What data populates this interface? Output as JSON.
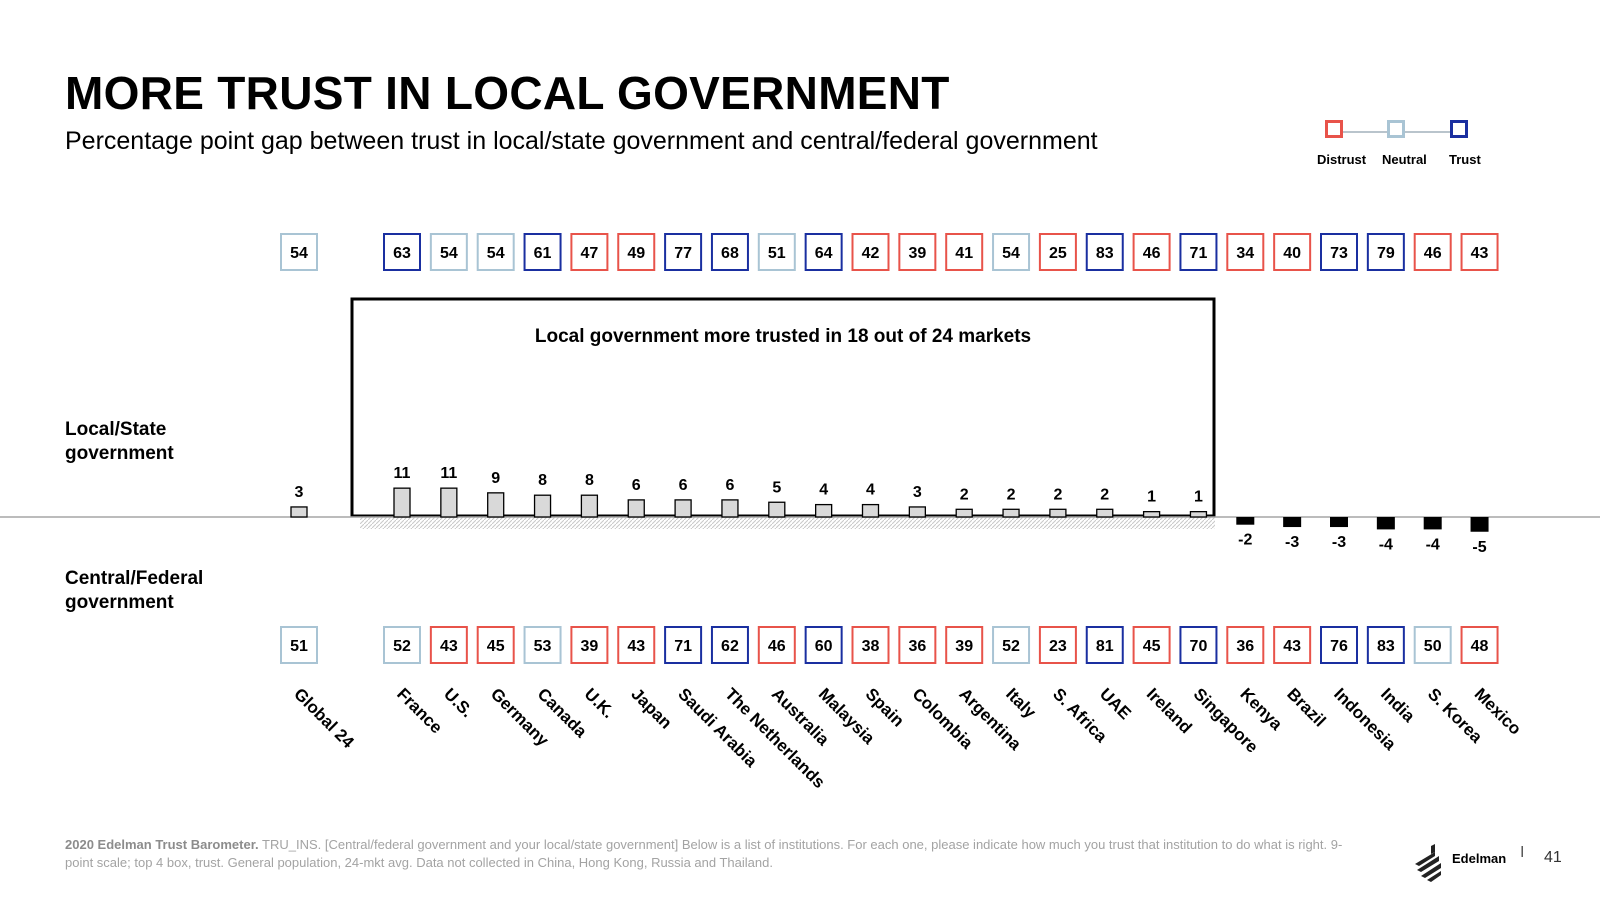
{
  "header": {
    "title": "MORE TRUST IN LOCAL GOVERNMENT",
    "subtitle": "Percentage point gap between trust in local/state government and central/federal government"
  },
  "labels": {
    "local_line1": "Local/State",
    "local_line2": "government",
    "central_line1": "Central/Federal",
    "central_line2": "government"
  },
  "legend": {
    "items": [
      {
        "label": "Distrust",
        "color": "#e8534a"
      },
      {
        "label": "Neutral",
        "color": "#a9c4d4"
      },
      {
        "label": "Trust",
        "color": "#1a2fa0"
      }
    ]
  },
  "annotation": {
    "text": "Local government more trusted in 18 out of 24 markets"
  },
  "colors": {
    "distrust": "#e8534a",
    "neutral": "#a9c4d4",
    "trust": "#1a2fa0",
    "positive_bar": "#d9d9d9",
    "negative_bar": "#000000"
  },
  "chart_data": {
    "type": "bar",
    "categories": [
      "Global 24",
      "France",
      "U.S.",
      "Germany",
      "Canada",
      "U.K.",
      "Japan",
      "Saudi Arabia",
      "The Netherlands",
      "Australia",
      "Malaysia",
      "Spain",
      "Colombia",
      "Argentina",
      "Italy",
      "S. Africa",
      "UAE",
      "Ireland",
      "Singapore",
      "Kenya",
      "Brazil",
      "Indonesia",
      "India",
      "S. Korea",
      "Mexico"
    ],
    "values": [
      3,
      11,
      11,
      9,
      8,
      8,
      6,
      6,
      6,
      5,
      4,
      4,
      3,
      2,
      2,
      2,
      2,
      1,
      1,
      -2,
      -3,
      -3,
      -4,
      -4,
      -5
    ],
    "local_trust": [
      54,
      63,
      54,
      54,
      61,
      47,
      49,
      77,
      68,
      51,
      64,
      42,
      39,
      41,
      54,
      25,
      83,
      46,
      71,
      34,
      40,
      73,
      79,
      46,
      43
    ],
    "central_trust": [
      51,
      52,
      43,
      45,
      53,
      39,
      43,
      71,
      62,
      46,
      60,
      38,
      36,
      39,
      52,
      23,
      81,
      45,
      70,
      36,
      43,
      76,
      83,
      50,
      48
    ],
    "trust_scale": "Distrust 1-49, Neutral 50-59, Trust 60-100",
    "ylim": [
      -5,
      11
    ],
    "xlabel": "",
    "ylabel": ""
  },
  "footer": {
    "source_bold": "2020 Edelman Trust Barometer.",
    "source_text": " TRU_INS. [Central/federal government and your local/state government] Below is a list of institutions. For each one, please indicate how much you trust that institution to do what is right. 9-point scale; top 4 box, trust. General population, 24-mkt avg. Data not collected in China, Hong Kong, Russia and Thailand."
  },
  "brand": {
    "name": "Edelman",
    "separator": "I",
    "page_number": "41"
  }
}
